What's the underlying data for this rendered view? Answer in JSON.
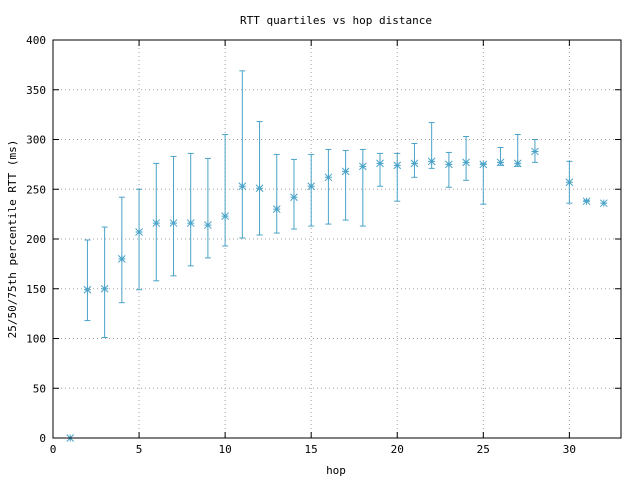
{
  "chart_data": {
    "type": "scatter",
    "title": "RTT quartiles vs hop distance",
    "xlabel": "hop",
    "ylabel": "25/50/75th percentile RTT (ms)",
    "xlim": [
      0,
      33
    ],
    "ylim": [
      0,
      400
    ],
    "xticks": [
      0,
      5,
      10,
      15,
      20,
      25,
      30
    ],
    "yticks": [
      0,
      50,
      100,
      150,
      200,
      250,
      300,
      350,
      400
    ],
    "grid": true,
    "marker": "asterisk",
    "color": "#4aa3c8",
    "points": [
      {
        "x": 1,
        "p25": 0,
        "median": 0,
        "p75": 0
      },
      {
        "x": 2,
        "p25": 118,
        "median": 149,
        "p75": 199
      },
      {
        "x": 3,
        "p25": 101,
        "median": 150,
        "p75": 212
      },
      {
        "x": 4,
        "p25": 136,
        "median": 180,
        "p75": 242
      },
      {
        "x": 5,
        "p25": 149,
        "median": 207,
        "p75": 250
      },
      {
        "x": 6,
        "p25": 158,
        "median": 216,
        "p75": 276
      },
      {
        "x": 7,
        "p25": 163,
        "median": 216,
        "p75": 283
      },
      {
        "x": 8,
        "p25": 173,
        "median": 216,
        "p75": 286
      },
      {
        "x": 9,
        "p25": 181,
        "median": 214,
        "p75": 281
      },
      {
        "x": 10,
        "p25": 193,
        "median": 223,
        "p75": 305
      },
      {
        "x": 11,
        "p25": 201,
        "median": 253,
        "p75": 369
      },
      {
        "x": 12,
        "p25": 204,
        "median": 251,
        "p75": 318
      },
      {
        "x": 13,
        "p25": 206,
        "median": 230,
        "p75": 285
      },
      {
        "x": 14,
        "p25": 210,
        "median": 242,
        "p75": 280
      },
      {
        "x": 15,
        "p25": 213,
        "median": 253,
        "p75": 285
      },
      {
        "x": 16,
        "p25": 215,
        "median": 262,
        "p75": 290
      },
      {
        "x": 17,
        "p25": 219,
        "median": 268,
        "p75": 289
      },
      {
        "x": 18,
        "p25": 213,
        "median": 273,
        "p75": 290
      },
      {
        "x": 19,
        "p25": 253,
        "median": 276,
        "p75": 286
      },
      {
        "x": 20,
        "p25": 238,
        "median": 274,
        "p75": 286
      },
      {
        "x": 21,
        "p25": 262,
        "median": 276,
        "p75": 296
      },
      {
        "x": 22,
        "p25": 271,
        "median": 278,
        "p75": 317
      },
      {
        "x": 23,
        "p25": 252,
        "median": 275,
        "p75": 287
      },
      {
        "x": 24,
        "p25": 259,
        "median": 277,
        "p75": 303
      },
      {
        "x": 25,
        "p25": 235,
        "median": 275,
        "p75": 276
      },
      {
        "x": 26,
        "p25": 274,
        "median": 277,
        "p75": 292
      },
      {
        "x": 27,
        "p25": 273,
        "median": 276,
        "p75": 305
      },
      {
        "x": 28,
        "p25": 277,
        "median": 288,
        "p75": 300
      },
      {
        "x": 30,
        "p25": 236,
        "median": 257,
        "p75": 278
      },
      {
        "x": 31,
        "p25": 238,
        "median": 238,
        "p75": 239
      },
      {
        "x": 32,
        "p25": 236,
        "median": 236,
        "p75": 236
      }
    ]
  }
}
